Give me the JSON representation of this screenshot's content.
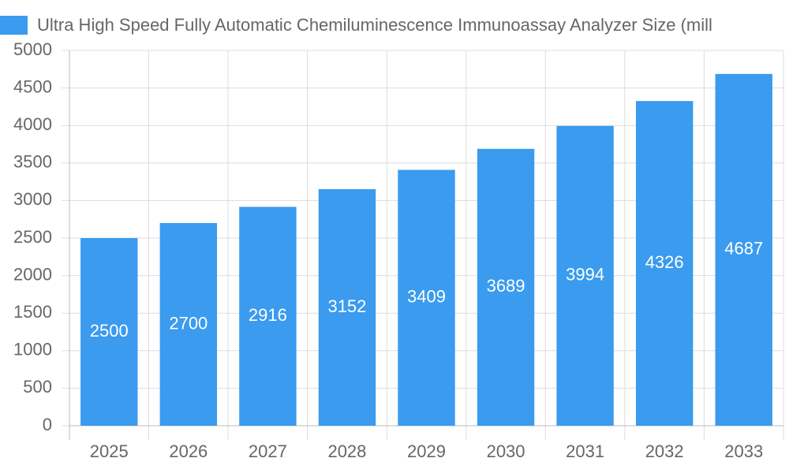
{
  "chart_data": {
    "type": "bar",
    "series": [
      {
        "name": "Ultra High Speed Fully Automatic Chemiluminescence Immunoassay Analyzer Size (mill",
        "color": "#3a9bef",
        "values": [
          2500,
          2700,
          2916,
          3152,
          3409,
          3689,
          3994,
          4326,
          4687
        ]
      }
    ],
    "categories": [
      "2025",
      "2026",
      "2027",
      "2028",
      "2029",
      "2030",
      "2031",
      "2032",
      "2033"
    ],
    "ylim": [
      0,
      5000
    ],
    "yticks": [
      0,
      500,
      1000,
      1500,
      2000,
      2500,
      3000,
      3500,
      4000,
      4500,
      5000
    ],
    "grid": true
  }
}
